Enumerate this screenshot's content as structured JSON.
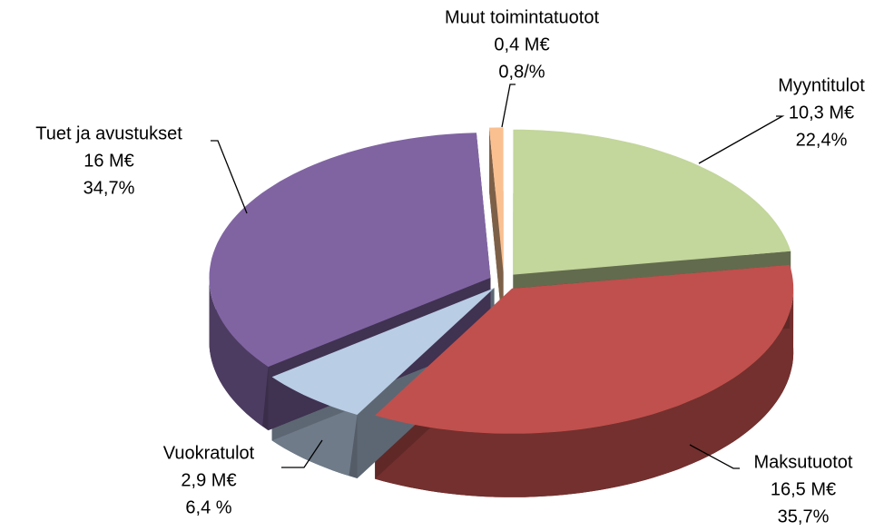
{
  "chart_data": {
    "type": "pie",
    "categories": [
      "Myyntitulot",
      "Maksutuotot",
      "Vuokratulot",
      "Tuet ja avustukset",
      "Muut toimintatuotot"
    ],
    "values": [
      22.4,
      35.7,
      6.4,
      34.7,
      0.8
    ],
    "value_labels": [
      "22,4%",
      "35,7%",
      "6,4 %",
      "34,7%",
      "0,8/%"
    ],
    "amounts": [
      10.3,
      16.5,
      2.9,
      16,
      0.4
    ],
    "amount_labels": [
      "10,3 M€",
      "16,5 M€",
      "2,9 M€",
      "16 M€",
      "0,4 M€"
    ],
    "colors": [
      "#c3d69b",
      "#c0504d",
      "#b9cde5",
      "#8064a2",
      "#fac090"
    ]
  }
}
